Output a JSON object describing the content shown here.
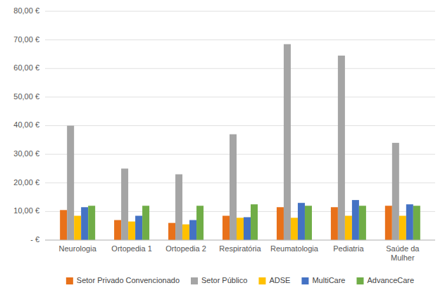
{
  "chart_data": {
    "type": "bar",
    "categories": [
      "Neurologia",
      "Ortopedia 1",
      "Ortopedia 2",
      "Respiratória",
      "Reumatologia",
      "Pediatria",
      "Saúde da Mulher"
    ],
    "series": [
      {
        "name": "Setor Privado Convencionado",
        "color": "#E8711A",
        "values": [
          10.5,
          7.0,
          6.0,
          8.5,
          11.5,
          11.5,
          12.0
        ]
      },
      {
        "name": "Setor Público",
        "color": "#A5A5A5",
        "values": [
          40.0,
          25.0,
          23.0,
          37.0,
          68.5,
          64.5,
          34.0
        ]
      },
      {
        "name": "ADSE",
        "color": "#FFC000",
        "values": [
          8.5,
          6.5,
          5.5,
          7.8,
          7.8,
          8.5,
          8.5
        ]
      },
      {
        "name": "MultiCare",
        "color": "#4472C4",
        "values": [
          11.5,
          8.5,
          7.0,
          8.0,
          13.0,
          14.0,
          12.5
        ]
      },
      {
        "name": "AdvanceCare",
        "color": "#70AD47",
        "values": [
          12.0,
          12.0,
          12.0,
          12.5,
          12.0,
          12.0,
          12.0
        ]
      }
    ],
    "ylim": [
      0,
      80
    ],
    "yticks": [
      {
        "value": 0,
        "label": "-  €"
      },
      {
        "value": 10,
        "label": "10,00 €"
      },
      {
        "value": 20,
        "label": "20,00 €"
      },
      {
        "value": 30,
        "label": "30,00 €"
      },
      {
        "value": 40,
        "label": "40,00 €"
      },
      {
        "value": 50,
        "label": "50,00 €"
      },
      {
        "value": 60,
        "label": "60,00 €"
      },
      {
        "value": 70,
        "label": "70,00 €"
      },
      {
        "value": 80,
        "label": "80,00 €"
      }
    ],
    "grid": true,
    "legend": "bottom"
  }
}
